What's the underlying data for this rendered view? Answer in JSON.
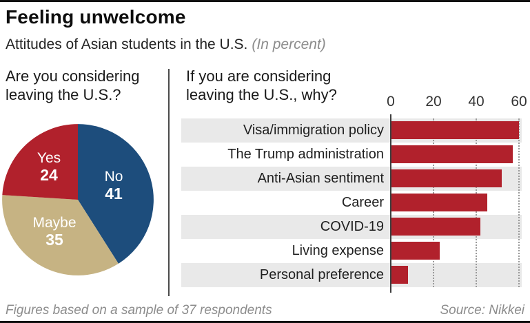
{
  "header": {
    "title": "Feeling unwelcome",
    "subtitle": "Attitudes of Asian students in the U.S.",
    "subtitle_note": "(In percent)"
  },
  "pie_section": {
    "question_line1": "Are you considering",
    "question_line2": "leaving the U.S.?"
  },
  "bar_section": {
    "question_line1": "If you are considering",
    "question_line2": "leaving the U.S., why?"
  },
  "footer": {
    "note": "Figures based on a sample of 37 respondents",
    "source": "Source: Nikkei"
  },
  "colors": {
    "red": "#b1212c",
    "blue": "#1d4d7c",
    "tan": "#c6b383",
    "band_gray": "#e9e9e9",
    "band_white": "#ffffff",
    "axis_line": "#3f3f3f",
    "grid_dot": "#9a9a9a",
    "muted_text": "#8c8c8c"
  },
  "chart_data": [
    {
      "type": "pie",
      "title": "Are you considering leaving the U.S.?",
      "unit": "percent",
      "direction": "clockwise",
      "start_angle_deg": 0,
      "slices": [
        {
          "label": "No",
          "value": 41,
          "color": "#1d4d7c"
        },
        {
          "label": "Maybe",
          "value": 35,
          "color": "#c6b383"
        },
        {
          "label": "Yes",
          "value": 24,
          "color": "#b1212c"
        }
      ]
    },
    {
      "type": "bar",
      "orientation": "horizontal",
      "title": "If you are considering leaving the U.S., why?",
      "unit": "percent",
      "categories": [
        "Visa/immigration policy",
        "The Trump administration",
        "Anti-Asian sentiment",
        "Career",
        "COVID-19",
        "Living expense",
        "Personal preference"
      ],
      "values": [
        60,
        57,
        52,
        45,
        42,
        23,
        8
      ],
      "xlim": [
        0,
        60
      ],
      "xticks": [
        0,
        20,
        40,
        60
      ],
      "bar_color": "#b1212c",
      "grid": "dotted-vertical-at-ticks",
      "row_stripes": [
        "#e9e9e9",
        "#ffffff"
      ],
      "legend": "none"
    }
  ]
}
